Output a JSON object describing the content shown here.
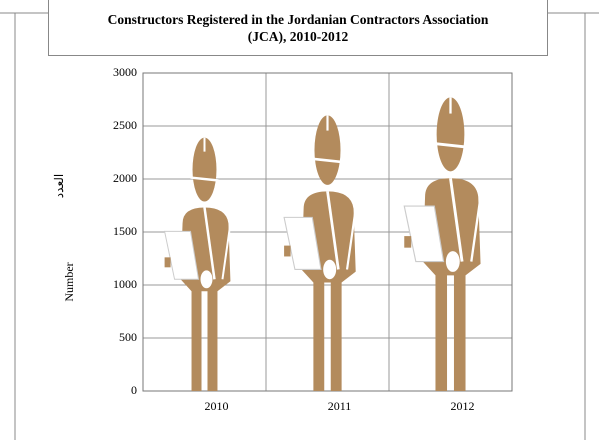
{
  "chart_data": {
    "type": "pictogram",
    "title": "Constructors Registered in the Jordanian Contractors Association (JCA), 2010-2012",
    "ylabel": "Number",
    "ylabel_alt": "العدد",
    "categories": [
      "2010",
      "2011",
      "2012"
    ],
    "values": [
      2390,
      2600,
      2770
    ],
    "color": "#b38b5d",
    "ylim": [
      0,
      3000
    ],
    "yticks": [
      0,
      500,
      1000,
      1500,
      2000,
      2500,
      3000
    ],
    "grid": true
  }
}
